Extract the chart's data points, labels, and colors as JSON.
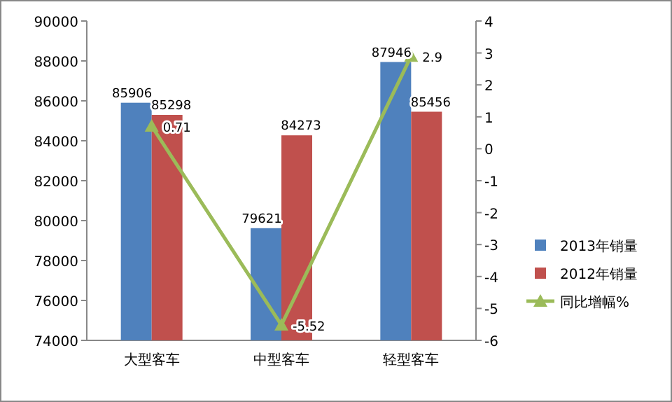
{
  "chart_data": {
    "type": "bar",
    "categories": [
      "大型客车",
      "中型客车",
      "轻型客车"
    ],
    "series": [
      {
        "name": "2013年销量",
        "color": "#4f81bd",
        "values": [
          85906,
          79621,
          87946
        ]
      },
      {
        "name": "2012年销量",
        "color": "#c0504d",
        "values": [
          85298,
          84273,
          85456
        ]
      },
      {
        "name": "同比增幅%",
        "type": "line",
        "axis": "y2",
        "color": "#9bbb59",
        "marker": "triangle",
        "values": [
          0.71,
          -5.52,
          2.9
        ]
      }
    ],
    "ylim": [
      74000,
      90000
    ],
    "yticks": [
      74000,
      76000,
      78000,
      80000,
      82000,
      84000,
      86000,
      88000,
      90000
    ],
    "y2lim": [
      -6,
      4
    ],
    "y2ticks": [
      -6,
      -5,
      -4,
      -3,
      -2,
      -1,
      0,
      1,
      2,
      3,
      4
    ],
    "data_labels": true,
    "legend": "right",
    "grid": false
  }
}
